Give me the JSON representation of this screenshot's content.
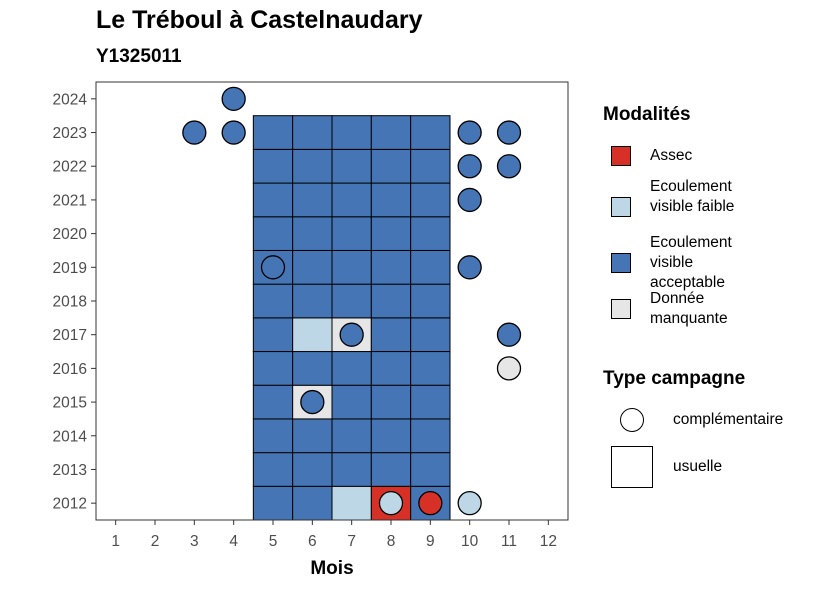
{
  "header": {
    "title": "Le Tréboul à Castelnaudary",
    "subtitle": "Y1325011"
  },
  "legend": {
    "modalites_title": "Modalités",
    "modalites": [
      {
        "key": "assec",
        "label": "Assec",
        "color": "#D73027"
      },
      {
        "key": "faible",
        "label": "Ecoulement visible faible",
        "color": "#BDD7E7"
      },
      {
        "key": "acceptable",
        "label": "Ecoulement visible acceptable",
        "color": "#4575B4"
      },
      {
        "key": "manquante",
        "label": "Donnée manquante",
        "color": "#E6E6E6"
      }
    ],
    "type_title": "Type campagne",
    "types": [
      {
        "key": "complementaire",
        "label": "complémentaire",
        "shape": "circle"
      },
      {
        "key": "usuelle",
        "label": "usuelle",
        "shape": "square"
      }
    ]
  },
  "chart_data": {
    "type": "heatmap",
    "title": "Le Tréboul à Castelnaudary",
    "subtitle": "Y1325011",
    "xlabel": "Mois",
    "ylabel": "",
    "x_ticks": [
      1,
      2,
      3,
      4,
      5,
      6,
      7,
      8,
      9,
      10,
      11,
      12
    ],
    "y_ticks": [
      2012,
      2013,
      2014,
      2015,
      2016,
      2017,
      2018,
      2019,
      2020,
      2021,
      2022,
      2023,
      2024
    ],
    "xlim": [
      0.5,
      12.5
    ],
    "ylim": [
      2011.5,
      2024.5
    ],
    "grid": false,
    "legend_position": "right",
    "usuelle": [
      {
        "year": 2012,
        "months": [
          "acceptable",
          "acceptable",
          "faible",
          "assec",
          "acceptable"
        ],
        "start_month": 5
      },
      {
        "year": 2013,
        "months": [
          "acceptable",
          "acceptable",
          "acceptable",
          "acceptable",
          "acceptable"
        ],
        "start_month": 5
      },
      {
        "year": 2014,
        "months": [
          "acceptable",
          "acceptable",
          "acceptable",
          "acceptable",
          "acceptable"
        ],
        "start_month": 5
      },
      {
        "year": 2015,
        "months": [
          "acceptable",
          "manquante",
          "acceptable",
          "acceptable",
          "acceptable"
        ],
        "start_month": 5
      },
      {
        "year": 2016,
        "months": [
          "acceptable",
          "acceptable",
          "acceptable",
          "acceptable",
          "acceptable"
        ],
        "start_month": 5
      },
      {
        "year": 2017,
        "months": [
          "acceptable",
          "faible",
          "manquante",
          "acceptable",
          "acceptable"
        ],
        "start_month": 5
      },
      {
        "year": 2018,
        "months": [
          "acceptable",
          "acceptable",
          "acceptable",
          "acceptable",
          "acceptable"
        ],
        "start_month": 5
      },
      {
        "year": 2019,
        "months": [
          "acceptable",
          "acceptable",
          "acceptable",
          "acceptable",
          "acceptable"
        ],
        "start_month": 5
      },
      {
        "year": 2020,
        "months": [
          "acceptable",
          "acceptable",
          "acceptable",
          "acceptable",
          "acceptable"
        ],
        "start_month": 5
      },
      {
        "year": 2021,
        "months": [
          "acceptable",
          "acceptable",
          "acceptable",
          "acceptable",
          "acceptable"
        ],
        "start_month": 5
      },
      {
        "year": 2022,
        "months": [
          "acceptable",
          "acceptable",
          "acceptable",
          "acceptable",
          "acceptable"
        ],
        "start_month": 5
      },
      {
        "year": 2023,
        "months": [
          "acceptable",
          "acceptable",
          "acceptable",
          "acceptable",
          "acceptable"
        ],
        "start_month": 5
      }
    ],
    "complementaire": [
      {
        "year": 2024,
        "month": 4,
        "modalite": "acceptable"
      },
      {
        "year": 2023,
        "month": 3,
        "modalite": "acceptable"
      },
      {
        "year": 2023,
        "month": 4,
        "modalite": "acceptable"
      },
      {
        "year": 2023,
        "month": 10,
        "modalite": "acceptable"
      },
      {
        "year": 2023,
        "month": 11,
        "modalite": "acceptable"
      },
      {
        "year": 2022,
        "month": 10,
        "modalite": "acceptable"
      },
      {
        "year": 2022,
        "month": 11,
        "modalite": "acceptable"
      },
      {
        "year": 2021,
        "month": 10,
        "modalite": "acceptable"
      },
      {
        "year": 2019,
        "month": 5,
        "modalite": "acceptable"
      },
      {
        "year": 2019,
        "month": 10,
        "modalite": "acceptable"
      },
      {
        "year": 2017,
        "month": 7,
        "modalite": "acceptable"
      },
      {
        "year": 2017,
        "month": 11,
        "modalite": "acceptable"
      },
      {
        "year": 2016,
        "month": 11,
        "modalite": "manquante"
      },
      {
        "year": 2015,
        "month": 6,
        "modalite": "acceptable"
      },
      {
        "year": 2012,
        "month": 8,
        "modalite": "faible"
      },
      {
        "year": 2012,
        "month": 9,
        "modalite": "assec"
      },
      {
        "year": 2012,
        "month": 10,
        "modalite": "faible"
      }
    ]
  }
}
